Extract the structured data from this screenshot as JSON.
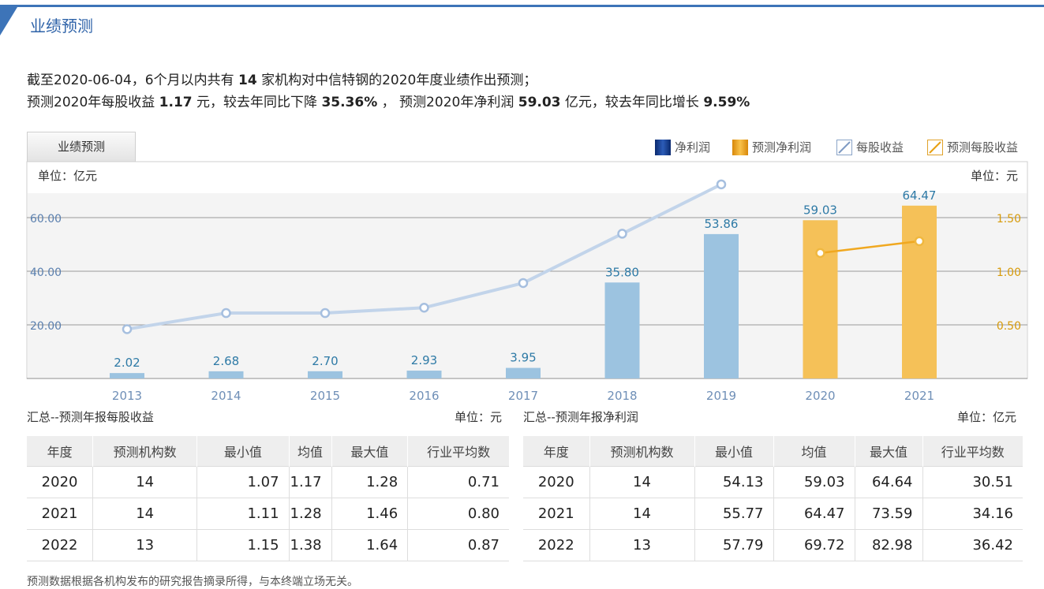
{
  "header": {
    "title": "业绩预测"
  },
  "summary": {
    "line1_a": "截至2020-06-04，6个月以内共有",
    "line1_count": "14",
    "line1_b": "家机构对中信特钢的2020年度业绩作出预测；",
    "line2_a": "预测2020年每股收益",
    "line2_eps": "1.17",
    "line2_b": "元，较去年同比下降",
    "line2_eps_change": "35.36%",
    "line2_c": "，  预测2020年净利润",
    "line2_np": "59.03",
    "line2_d": "亿元，较去年同比增长",
    "line2_np_change": "9.59%"
  },
  "tab": {
    "label": "业绩预测"
  },
  "legend": {
    "net_profit": "净利润",
    "forecast_net_profit": "预测净利润",
    "eps": "每股收益",
    "forecast_eps": "预测每股收益"
  },
  "colors": {
    "accent": "#3d74b8",
    "bar_actual": "#9cc3e0",
    "bar_forecast": "#f5c158",
    "eps_line": "#c2d4ea",
    "forecast_eps_line": "#f0a820"
  },
  "chart_data": {
    "type": "bar",
    "unit_left": "单位：亿元",
    "unit_right": "单位：元",
    "categories": [
      "2013",
      "2014",
      "2015",
      "2016",
      "2017",
      "2018",
      "2019",
      "2020",
      "2021"
    ],
    "series": [
      {
        "name": "净利润",
        "values": [
          2.02,
          2.68,
          2.7,
          2.93,
          3.95,
          35.8,
          53.86,
          null,
          null
        ]
      },
      {
        "name": "预测净利润",
        "values": [
          null,
          null,
          null,
          null,
          null,
          null,
          null,
          59.03,
          64.47
        ]
      },
      {
        "name": "每股收益",
        "axis": "right",
        "values": [
          0.46,
          0.61,
          0.61,
          0.66,
          0.89,
          1.35,
          1.81,
          null,
          null
        ]
      },
      {
        "name": "预测每股收益",
        "axis": "right",
        "values": [
          null,
          null,
          null,
          null,
          null,
          null,
          null,
          1.17,
          1.28
        ]
      }
    ],
    "data_labels": [
      "2.02",
      "2.68",
      "2.70",
      "2.93",
      "3.95",
      "35.80",
      "53.86",
      "59.03",
      "64.47"
    ],
    "ylim_left": [
      0,
      80
    ],
    "ylim_right": [
      0,
      2.0
    ],
    "yticks_left": [
      "20.00",
      "40.00",
      "60.00"
    ],
    "yticks_right": [
      "0.50",
      "1.00",
      "1.50"
    ],
    "grid": true,
    "legend_position": "top-right"
  },
  "eps_table": {
    "caption": "汇总--预测年报每股收益",
    "unit": "单位：元",
    "headers": [
      "年度",
      "预测机构数",
      "最小值",
      "均值",
      "最大值",
      "行业平均数"
    ],
    "rows": [
      [
        "2020",
        "14",
        "1.07",
        "1.17",
        "1.28",
        "0.71"
      ],
      [
        "2021",
        "14",
        "1.11",
        "1.28",
        "1.46",
        "0.80"
      ],
      [
        "2022",
        "13",
        "1.15",
        "1.38",
        "1.64",
        "0.87"
      ]
    ]
  },
  "np_table": {
    "caption": "汇总--预测年报净利润",
    "unit": "单位：亿元",
    "headers": [
      "年度",
      "预测机构数",
      "最小值",
      "均值",
      "最大值",
      "行业平均数"
    ],
    "rows": [
      [
        "2020",
        "14",
        "54.13",
        "59.03",
        "64.64",
        "30.51"
      ],
      [
        "2021",
        "14",
        "55.77",
        "64.47",
        "73.59",
        "34.16"
      ],
      [
        "2022",
        "13",
        "57.79",
        "69.72",
        "82.98",
        "36.42"
      ]
    ]
  },
  "footnote": "预测数据根据各机构发布的研究报告摘录所得，与本终端立场无关。"
}
